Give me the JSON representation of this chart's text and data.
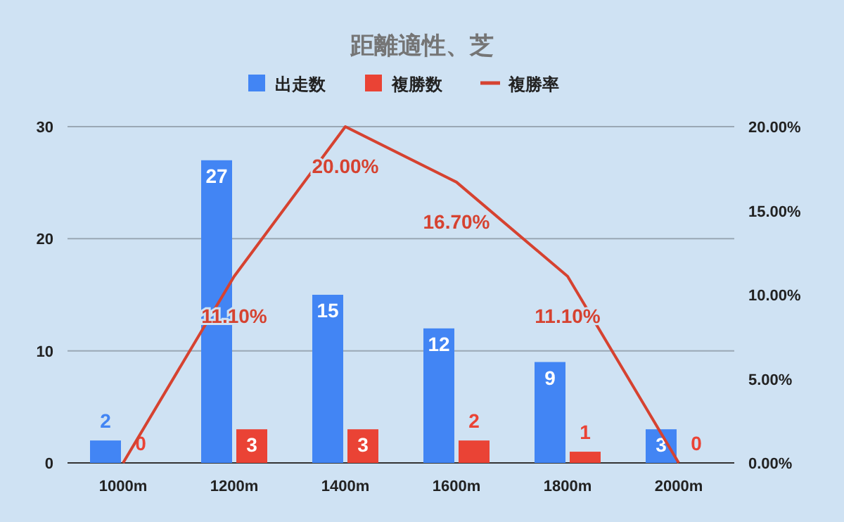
{
  "chart_data": {
    "type": "bar",
    "title": "距離適性、芝",
    "categories": [
      "1000m",
      "1200m",
      "1400m",
      "1600m",
      "1800m",
      "2000m"
    ],
    "series": [
      {
        "name": "出走数",
        "type": "bar",
        "color": "#4285f4",
        "values": [
          2,
          27,
          15,
          12,
          9,
          3
        ],
        "value_labels": [
          "2",
          "27",
          "15",
          "12",
          "9",
          "3"
        ]
      },
      {
        "name": "複勝数",
        "type": "bar",
        "color": "#ea4335",
        "values": [
          0,
          3,
          3,
          2,
          1,
          0
        ],
        "value_labels": [
          "0",
          "3",
          "3",
          "2",
          "1",
          "0"
        ]
      },
      {
        "name": "複勝率",
        "type": "line",
        "axis": "y2",
        "color": "#d64230",
        "values": [
          0,
          11.1,
          20,
          16.7,
          11.1,
          0
        ],
        "value_labels": [
          null,
          "11.10%",
          "20.00%",
          "16.70%",
          "11.10%",
          null
        ]
      }
    ],
    "ylim": [
      0,
      30
    ],
    "yticks": [
      0,
      10,
      20,
      30
    ],
    "y2lim": [
      0,
      20
    ],
    "y2ticks": [
      {
        "value": 0,
        "label": "0.00%"
      },
      {
        "value": 5,
        "label": "5.00%"
      },
      {
        "value": 10,
        "label": "10.00%"
      },
      {
        "value": 15,
        "label": "15.00%"
      },
      {
        "value": 20,
        "label": "20.00%"
      }
    ],
    "grid": "y",
    "legend": "top"
  }
}
